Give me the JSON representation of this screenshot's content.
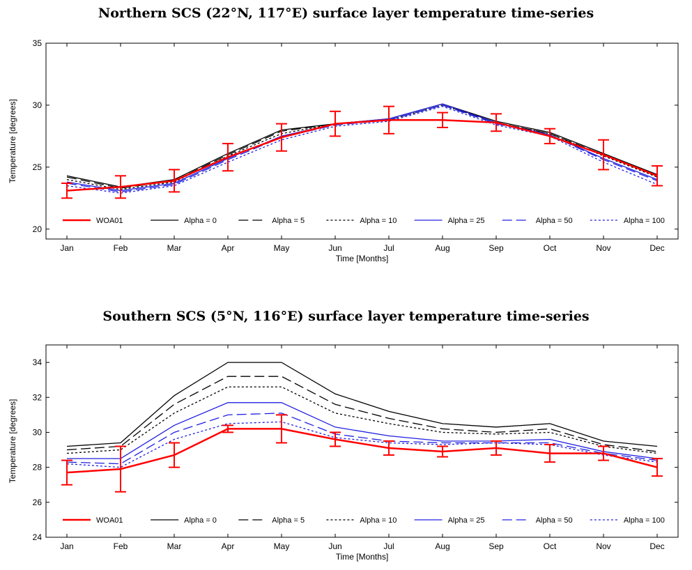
{
  "chart_data": [
    {
      "type": "line",
      "title": "Northern SCS (22°N, 117°E) surface layer temperature time-series",
      "xlabel": "Time [Months]",
      "ylabel": "Temperature [degrees]",
      "categories": [
        "Jan",
        "Feb",
        "Mar",
        "Apr",
        "May",
        "Jun",
        "Jul",
        "Aug",
        "Sep",
        "Oct",
        "Nov",
        "Dec"
      ],
      "ylim": [
        19.2,
        35
      ],
      "yticks": [
        20,
        25,
        30,
        35
      ],
      "grid": false,
      "legend_position": "bottom",
      "series": [
        {
          "name": "WOA01",
          "color": "#ff0000",
          "style": "solid",
          "values": [
            23.1,
            23.4,
            23.9,
            25.8,
            27.4,
            28.5,
            28.8,
            28.8,
            28.6,
            27.5,
            26.0,
            24.3
          ],
          "error": [
            0.6,
            0.9,
            0.9,
            1.1,
            1.1,
            1.0,
            1.1,
            0.6,
            0.7,
            0.6,
            1.2,
            0.8
          ]
        },
        {
          "name": "Alpha = 0",
          "color": "#000000",
          "style": "solid",
          "values": [
            24.3,
            23.4,
            24.0,
            26.1,
            28.0,
            28.5,
            28.9,
            30.1,
            28.7,
            27.8,
            26.1,
            24.4
          ]
        },
        {
          "name": "Alpha = 5",
          "color": "#000000",
          "style": "longdash",
          "values": [
            24.2,
            23.3,
            23.9,
            26.0,
            27.9,
            28.5,
            28.8,
            30.0,
            28.6,
            27.7,
            26.0,
            24.3
          ]
        },
        {
          "name": "Alpha = 10",
          "color": "#000000",
          "style": "dotted",
          "values": [
            24.0,
            23.2,
            23.8,
            25.9,
            27.7,
            28.5,
            28.8,
            30.0,
            28.6,
            27.7,
            25.9,
            24.2
          ]
        },
        {
          "name": "Alpha = 25",
          "color": "#2020e0",
          "style": "solid",
          "values": [
            23.8,
            23.1,
            23.7,
            25.7,
            27.5,
            28.5,
            28.9,
            30.1,
            28.6,
            27.6,
            25.7,
            24.0
          ]
        },
        {
          "name": "Alpha = 50",
          "color": "#2020e0",
          "style": "longdash",
          "values": [
            23.7,
            23.0,
            23.6,
            25.6,
            27.4,
            28.4,
            28.8,
            30.0,
            28.5,
            27.6,
            25.6,
            23.9
          ]
        },
        {
          "name": "Alpha = 100",
          "color": "#2020e0",
          "style": "dotted",
          "values": [
            23.5,
            22.9,
            23.5,
            25.4,
            27.2,
            28.3,
            28.7,
            29.9,
            28.4,
            27.5,
            25.4,
            23.6
          ]
        }
      ]
    },
    {
      "type": "line",
      "title": "Southern SCS (5°N, 116°E) surface layer temperature time-series",
      "xlabel": "Time [Months]",
      "ylabel": "Temperature [degrees]",
      "categories": [
        "Jan",
        "Feb",
        "Mar",
        "Apr",
        "May",
        "Jun",
        "Jul",
        "Aug",
        "Sep",
        "Oct",
        "Nov",
        "Dec"
      ],
      "ylim": [
        24,
        35
      ],
      "yticks": [
        24,
        26,
        28,
        30,
        32,
        34
      ],
      "grid": false,
      "legend_position": "bottom",
      "series": [
        {
          "name": "WOA01",
          "color": "#ff0000",
          "style": "solid",
          "values": [
            27.7,
            27.9,
            28.7,
            30.2,
            30.2,
            29.6,
            29.1,
            28.9,
            29.1,
            28.8,
            28.8,
            28.0
          ],
          "error": [
            0.7,
            1.3,
            0.7,
            0.2,
            0.8,
            0.4,
            0.4,
            0.3,
            0.4,
            0.5,
            0.4,
            0.5
          ]
        },
        {
          "name": "Alpha = 0",
          "color": "#000000",
          "style": "solid",
          "values": [
            29.2,
            29.4,
            32.1,
            34.0,
            34.0,
            32.2,
            31.2,
            30.5,
            30.3,
            30.5,
            29.5,
            29.2
          ]
        },
        {
          "name": "Alpha = 5",
          "color": "#000000",
          "style": "longdash",
          "values": [
            29.0,
            29.2,
            31.6,
            33.2,
            33.2,
            31.6,
            30.8,
            30.2,
            30.0,
            30.2,
            29.3,
            28.9
          ]
        },
        {
          "name": "Alpha = 10",
          "color": "#000000",
          "style": "dotted",
          "values": [
            28.8,
            29.0,
            31.1,
            32.6,
            32.6,
            31.1,
            30.5,
            30.0,
            29.9,
            30.0,
            29.2,
            28.8
          ]
        },
        {
          "name": "Alpha = 25",
          "color": "#2020e0",
          "style": "solid",
          "values": [
            28.5,
            28.5,
            30.4,
            31.7,
            31.7,
            30.3,
            29.8,
            29.5,
            29.5,
            29.6,
            28.9,
            28.5
          ]
        },
        {
          "name": "Alpha = 50",
          "color": "#2020e0",
          "style": "longdash",
          "values": [
            28.3,
            28.2,
            30.0,
            31.0,
            31.1,
            29.9,
            29.5,
            29.4,
            29.4,
            29.4,
            28.8,
            28.4
          ]
        },
        {
          "name": "Alpha = 100",
          "color": "#2020e0",
          "style": "dotted",
          "values": [
            28.2,
            28.0,
            29.6,
            30.5,
            30.6,
            29.7,
            29.4,
            29.3,
            29.4,
            29.3,
            28.7,
            28.3
          ]
        }
      ]
    }
  ]
}
